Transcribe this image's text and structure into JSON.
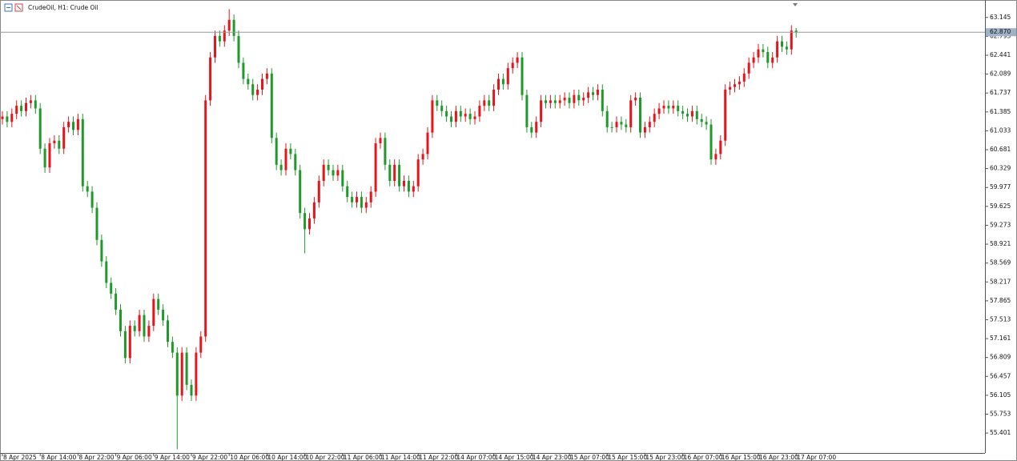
{
  "chart_data": {
    "type": "candlestick",
    "title": "CrudeOil, H1:  Crude Oil",
    "categories": [
      "8 Apr 2025",
      null,
      null,
      null,
      null,
      null,
      null,
      null,
      "8 Apr 14:00",
      null,
      null,
      null,
      null,
      null,
      null,
      null,
      "8 Apr 22:00",
      null,
      null,
      null,
      null,
      null,
      null,
      null,
      "9 Apr 06:00",
      null,
      null,
      null,
      null,
      null,
      null,
      null,
      "9 Apr 14:00",
      null,
      null,
      null,
      null,
      null,
      null,
      null,
      "9 Apr 22:00",
      null,
      null,
      null,
      null,
      null,
      null,
      null,
      "10 Apr 06:00",
      null,
      null,
      null,
      null,
      null,
      null,
      null,
      "10 Apr 14:00",
      null,
      null,
      null,
      null,
      null,
      null,
      null,
      "10 Apr 22:00",
      null,
      null,
      null,
      null,
      null,
      null,
      null,
      "11 Apr 06:00",
      null,
      null,
      null,
      null,
      null,
      null,
      null,
      "11 Apr 14:00",
      null,
      null,
      null,
      null,
      null,
      null,
      null,
      "11 Apr 22:00",
      null,
      null,
      null,
      null,
      null,
      null,
      null,
      "14 Apr 07:00",
      null,
      null,
      null,
      null,
      null,
      null,
      null,
      "14 Apr 15:00",
      null,
      null,
      null,
      null,
      null,
      null,
      null,
      "14 Apr 23:00",
      null,
      null,
      null,
      null,
      null,
      null,
      null,
      "15 Apr 07:00",
      null,
      null,
      null,
      null,
      null,
      null,
      null,
      "15 Apr 15:00",
      null,
      null,
      null,
      null,
      null,
      null,
      null,
      "15 Apr 23:00",
      null,
      null,
      null,
      null,
      null,
      null,
      null,
      "16 Apr 07:00",
      null,
      null,
      null,
      null,
      null,
      null,
      null,
      "16 Apr 15:00",
      null,
      null,
      null,
      null,
      null,
      null,
      null,
      "16 Apr 23:00",
      null,
      null,
      null,
      null,
      null,
      null,
      null,
      "17 Apr 07:00"
    ],
    "up_color": "#e8141b",
    "down_color": "#1f9a2a",
    "open": [
      61.25,
      61.3,
      61.2,
      61.35,
      61.5,
      61.4,
      61.55,
      61.6,
      61.45,
      60.7,
      60.35,
      60.8,
      60.85,
      60.7,
      61.1,
      61.2,
      61.05,
      61.25,
      60.0,
      59.9,
      59.6,
      59.0,
      58.6,
      58.2,
      58.0,
      57.7,
      57.3,
      56.8,
      57.4,
      57.3,
      57.6,
      57.2,
      57.4,
      57.9,
      57.7,
      57.5,
      57.1,
      56.9,
      56.1,
      56.9,
      56.3,
      56.1,
      56.9,
      57.2,
      61.6,
      62.4,
      62.8,
      62.7,
      62.9,
      63.1,
      62.8,
      62.3,
      62.0,
      61.9,
      61.7,
      61.8,
      62.0,
      62.1,
      60.9,
      60.4,
      60.3,
      60.7,
      60.6,
      60.3,
      59.5,
      59.2,
      59.4,
      59.7,
      60.1,
      60.4,
      60.3,
      60.2,
      60.3,
      60.0,
      59.8,
      59.7,
      59.8,
      59.6,
      59.7,
      59.9,
      60.8,
      60.9,
      60.4,
      60.1,
      60.4,
      60.0,
      60.1,
      59.9,
      60.0,
      60.5,
      60.6,
      61.0,
      61.6,
      61.5,
      61.4,
      61.3,
      61.2,
      61.4,
      61.3,
      61.35,
      61.25,
      61.3,
      61.5,
      61.6,
      61.5,
      61.8,
      62.0,
      61.9,
      62.2,
      62.3,
      62.4,
      61.7,
      61.1,
      61.0,
      61.2,
      61.6,
      61.55,
      61.6,
      61.55,
      61.6,
      61.65,
      61.55,
      61.7,
      61.6,
      61.65,
      61.75,
      61.7,
      61.8,
      61.4,
      61.1,
      61.1,
      61.2,
      61.15,
      61.1,
      61.6,
      61.65,
      61.0,
      61.1,
      61.2,
      61.35,
      61.45,
      61.5,
      61.45,
      61.5,
      61.4,
      61.35,
      61.3,
      61.4,
      61.25,
      61.2,
      61.15,
      60.5,
      60.6,
      60.85,
      61.8,
      61.85,
      61.9,
      61.95,
      62.1,
      62.3,
      62.4,
      62.55,
      62.5,
      62.3,
      62.4,
      62.7,
      62.6,
      62.55,
      62.9
    ],
    "high": [
      61.4,
      61.4,
      61.45,
      61.6,
      61.6,
      61.65,
      61.7,
      61.7,
      61.55,
      60.8,
      60.9,
      60.95,
      60.95,
      61.2,
      61.3,
      61.3,
      61.35,
      61.35,
      60.1,
      60.0,
      59.7,
      59.1,
      58.7,
      58.3,
      58.1,
      57.8,
      57.4,
      57.5,
      57.5,
      57.7,
      57.7,
      57.5,
      58.0,
      58.0,
      57.8,
      57.6,
      57.2,
      57.0,
      57.0,
      57.0,
      56.4,
      57.0,
      57.3,
      61.7,
      62.5,
      62.9,
      62.9,
      63.0,
      63.3,
      63.2,
      62.9,
      62.4,
      62.1,
      62.0,
      61.9,
      62.1,
      62.2,
      62.2,
      61.0,
      60.5,
      60.8,
      60.8,
      60.7,
      60.4,
      59.6,
      59.5,
      59.8,
      60.2,
      60.5,
      60.5,
      60.4,
      60.4,
      60.4,
      60.1,
      59.9,
      59.9,
      59.9,
      59.8,
      60.0,
      60.9,
      61.0,
      61.0,
      60.5,
      60.5,
      60.5,
      60.2,
      60.2,
      60.1,
      60.6,
      60.7,
      61.1,
      61.7,
      61.7,
      61.6,
      61.5,
      61.4,
      61.5,
      61.5,
      61.45,
      61.45,
      61.4,
      61.6,
      61.7,
      61.7,
      61.9,
      62.1,
      62.1,
      62.3,
      62.4,
      62.5,
      62.5,
      61.8,
      61.2,
      61.3,
      61.7,
      61.7,
      61.7,
      61.7,
      61.7,
      61.75,
      61.75,
      61.8,
      61.8,
      61.75,
      61.85,
      61.85,
      61.9,
      61.9,
      61.5,
      61.2,
      61.3,
      61.3,
      61.25,
      61.7,
      61.75,
      61.75,
      61.2,
      61.3,
      61.45,
      61.55,
      61.6,
      61.6,
      61.6,
      61.6,
      61.5,
      61.45,
      61.5,
      61.5,
      61.35,
      61.3,
      61.25,
      60.7,
      60.95,
      61.9,
      61.95,
      62.0,
      62.05,
      62.2,
      62.4,
      62.5,
      62.65,
      62.65,
      62.6,
      62.5,
      62.8,
      62.8,
      62.7,
      63.0,
      62.95
    ],
    "low": [
      61.15,
      61.1,
      61.1,
      61.25,
      61.3,
      61.3,
      61.45,
      61.35,
      60.6,
      60.25,
      60.25,
      60.7,
      60.6,
      60.6,
      61.0,
      60.95,
      60.95,
      59.9,
      59.8,
      59.5,
      58.9,
      58.5,
      58.1,
      57.9,
      57.6,
      57.2,
      56.7,
      56.7,
      57.2,
      57.2,
      57.1,
      57.1,
      57.3,
      57.6,
      57.4,
      57.0,
      56.8,
      55.1,
      56.0,
      56.2,
      56.0,
      56.0,
      56.8,
      57.1,
      61.5,
      62.3,
      62.6,
      62.6,
      62.8,
      62.7,
      62.2,
      61.9,
      61.8,
      61.6,
      61.6,
      61.7,
      61.9,
      60.8,
      60.3,
      60.2,
      60.2,
      60.5,
      60.2,
      59.4,
      58.75,
      59.1,
      59.3,
      59.6,
      60.0,
      60.2,
      60.1,
      60.1,
      59.9,
      59.7,
      59.6,
      59.6,
      59.5,
      59.5,
      59.6,
      59.8,
      60.7,
      60.3,
      60.0,
      60.0,
      59.9,
      59.9,
      59.8,
      59.8,
      59.9,
      60.4,
      60.5,
      60.9,
      61.4,
      61.3,
      61.2,
      61.1,
      61.1,
      61.2,
      61.2,
      61.15,
      61.15,
      61.2,
      61.4,
      61.4,
      61.4,
      61.7,
      61.8,
      61.8,
      62.1,
      62.2,
      61.6,
      61.0,
      60.9,
      60.9,
      61.1,
      61.45,
      61.45,
      61.45,
      61.45,
      61.5,
      61.45,
      61.45,
      61.5,
      61.5,
      61.55,
      61.6,
      61.6,
      61.3,
      61.0,
      61.0,
      61.0,
      61.05,
      61.0,
      61.0,
      61.5,
      60.9,
      60.9,
      61.0,
      61.1,
      61.25,
      61.35,
      61.35,
      61.35,
      61.3,
      61.25,
      61.2,
      61.2,
      61.15,
      61.1,
      61.05,
      60.4,
      60.4,
      60.5,
      60.75,
      61.7,
      61.75,
      61.8,
      61.85,
      62.0,
      62.2,
      62.3,
      62.4,
      62.2,
      62.2,
      62.3,
      62.5,
      62.45,
      62.45,
      62.77
    ],
    "close": [
      61.3,
      61.2,
      61.35,
      61.5,
      61.4,
      61.55,
      61.6,
      61.45,
      60.7,
      60.35,
      60.8,
      60.85,
      60.7,
      61.1,
      61.2,
      61.05,
      61.25,
      60.0,
      59.9,
      59.6,
      59.0,
      58.6,
      58.2,
      58.0,
      57.7,
      57.3,
      56.8,
      57.4,
      57.3,
      57.6,
      57.2,
      57.4,
      57.9,
      57.7,
      57.5,
      57.1,
      56.9,
      56.1,
      56.9,
      56.3,
      56.1,
      56.9,
      57.2,
      61.6,
      62.4,
      62.8,
      62.7,
      62.9,
      63.1,
      62.8,
      62.3,
      62.0,
      61.9,
      61.7,
      61.8,
      62.0,
      62.1,
      60.9,
      60.4,
      60.3,
      60.7,
      60.6,
      60.3,
      59.5,
      59.2,
      59.4,
      59.7,
      60.1,
      60.4,
      60.3,
      60.2,
      60.3,
      60.0,
      59.8,
      59.7,
      59.8,
      59.6,
      59.7,
      59.9,
      60.8,
      60.9,
      60.4,
      60.1,
      60.4,
      60.0,
      60.1,
      59.9,
      60.0,
      60.5,
      60.6,
      61.0,
      61.6,
      61.5,
      61.4,
      61.3,
      61.2,
      61.4,
      61.3,
      61.35,
      61.25,
      61.3,
      61.5,
      61.6,
      61.5,
      61.8,
      62.0,
      61.9,
      62.2,
      62.3,
      62.4,
      61.7,
      61.1,
      61.0,
      61.2,
      61.6,
      61.55,
      61.6,
      61.55,
      61.6,
      61.65,
      61.55,
      61.7,
      61.6,
      61.65,
      61.75,
      61.7,
      61.8,
      61.4,
      61.1,
      61.1,
      61.2,
      61.15,
      61.1,
      61.6,
      61.65,
      61.0,
      61.1,
      61.2,
      61.35,
      61.45,
      61.5,
      61.45,
      61.5,
      61.4,
      61.35,
      61.3,
      61.4,
      61.25,
      61.2,
      61.15,
      60.5,
      60.6,
      60.85,
      61.8,
      61.85,
      61.9,
      61.95,
      62.1,
      62.3,
      62.4,
      62.55,
      62.5,
      62.3,
      62.4,
      62.7,
      62.6,
      62.55,
      62.9,
      62.87
    ],
    "current_price": {
      "value": 62.87,
      "label": "62.870"
    },
    "ylim": [
      55.03,
      63.47
    ],
    "yticks": [
      63.145,
      62.793,
      62.441,
      62.089,
      61.737,
      61.385,
      61.033,
      60.681,
      60.329,
      59.977,
      59.625,
      59.273,
      58.921,
      58.569,
      58.217,
      57.865,
      57.513,
      57.161,
      56.809,
      56.457,
      56.105,
      55.753,
      55.401
    ]
  }
}
